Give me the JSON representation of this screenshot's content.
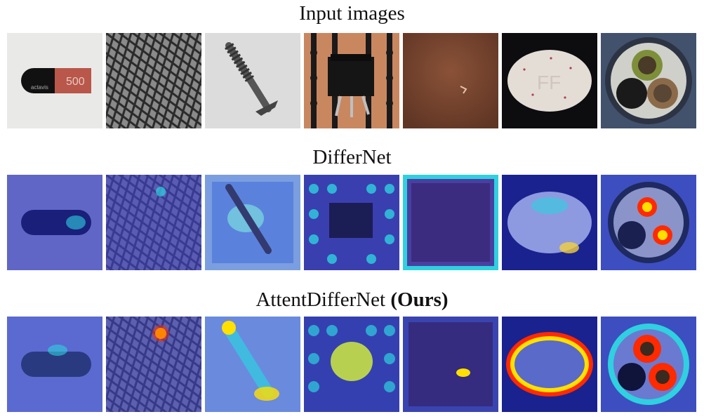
{
  "rows": [
    {
      "title": "Input images",
      "title_suffix": ""
    },
    {
      "title": "DifferNet",
      "title_suffix": ""
    },
    {
      "title": "AttentDifferNet ",
      "title_suffix": "(Ours)"
    }
  ],
  "samples": [
    {
      "object": "capsule",
      "print_text": "500",
      "brand_text": "actavis",
      "icon": "capsule-image"
    },
    {
      "object": "grid",
      "icon": "grid-texture-image"
    },
    {
      "object": "screw",
      "icon": "screw-image"
    },
    {
      "object": "transistor",
      "icon": "transistor-image"
    },
    {
      "object": "leather",
      "icon": "leather-texture-image"
    },
    {
      "object": "pill",
      "print_text": "FF",
      "icon": "pill-image"
    },
    {
      "object": "cable",
      "icon": "cable-image"
    }
  ],
  "colors": {
    "heat_low": "#3f44c8",
    "heat_mid": "#2fd0e0",
    "heat_high": "#ff2a00",
    "heat_peak": "#ffe000"
  }
}
